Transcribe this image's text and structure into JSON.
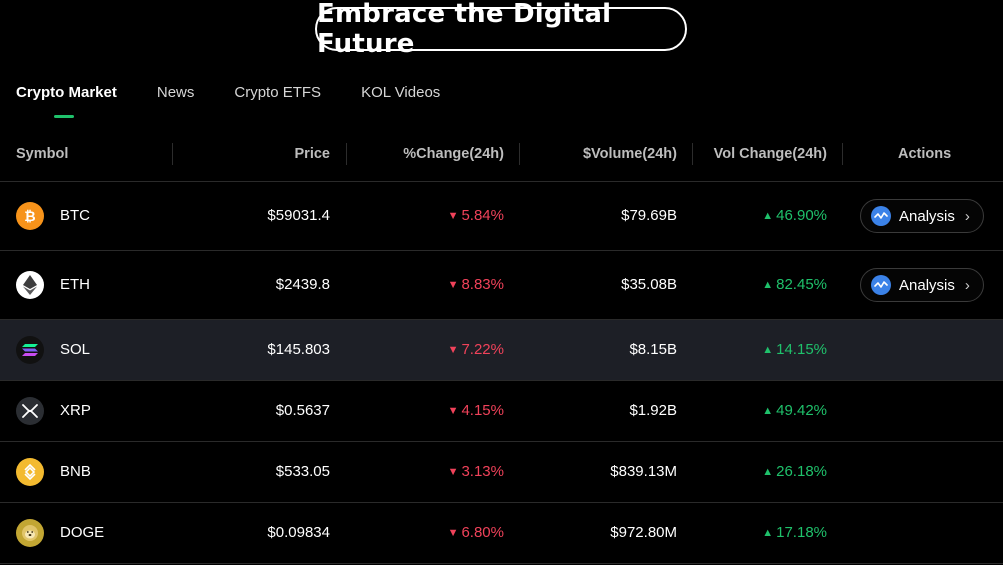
{
  "banner": {
    "title": "Embrace the Digital Future"
  },
  "tabs": [
    {
      "label": "Crypto Market",
      "active": true
    },
    {
      "label": "News",
      "active": false
    },
    {
      "label": "Crypto ETFS",
      "active": false
    },
    {
      "label": "KOL Videos",
      "active": false
    }
  ],
  "colors": {
    "up": "#1fc16b",
    "down": "#f0425a",
    "highlight_row": "#1d1f26",
    "accent": "#1fc16b"
  },
  "table": {
    "headers": {
      "symbol": "Symbol",
      "price": "Price",
      "change": "%Change(24h)",
      "volume": "$Volume(24h)",
      "vol_change": "Vol Change(24h)",
      "actions": "Actions"
    },
    "action_label": "Analysis",
    "rows": [
      {
        "symbol": "BTC",
        "icon": "bitcoin-icon",
        "price": "$59031.4",
        "change": "5.84%",
        "change_dir": "down",
        "volume": "$79.69B",
        "vol_change": "46.90%",
        "vol_change_dir": "up",
        "has_action": true
      },
      {
        "symbol": "ETH",
        "icon": "ethereum-icon",
        "price": "$2439.8",
        "change": "8.83%",
        "change_dir": "down",
        "volume": "$35.08B",
        "vol_change": "82.45%",
        "vol_change_dir": "up",
        "has_action": true
      },
      {
        "symbol": "SOL",
        "icon": "solana-icon",
        "price": "$145.803",
        "change": "7.22%",
        "change_dir": "down",
        "volume": "$8.15B",
        "vol_change": "14.15%",
        "vol_change_dir": "up",
        "has_action": false,
        "highlighted": true
      },
      {
        "symbol": "XRP",
        "icon": "xrp-icon",
        "price": "$0.5637",
        "change": "4.15%",
        "change_dir": "down",
        "volume": "$1.92B",
        "vol_change": "49.42%",
        "vol_change_dir": "up",
        "has_action": false
      },
      {
        "symbol": "BNB",
        "icon": "bnb-icon",
        "price": "$533.05",
        "change": "3.13%",
        "change_dir": "down",
        "volume": "$839.13M",
        "vol_change": "26.18%",
        "vol_change_dir": "up",
        "has_action": false
      },
      {
        "symbol": "DOGE",
        "icon": "dogecoin-icon",
        "price": "$0.09834",
        "change": "6.80%",
        "change_dir": "down",
        "volume": "$972.80M",
        "vol_change": "17.18%",
        "vol_change_dir": "up",
        "has_action": false
      }
    ]
  }
}
